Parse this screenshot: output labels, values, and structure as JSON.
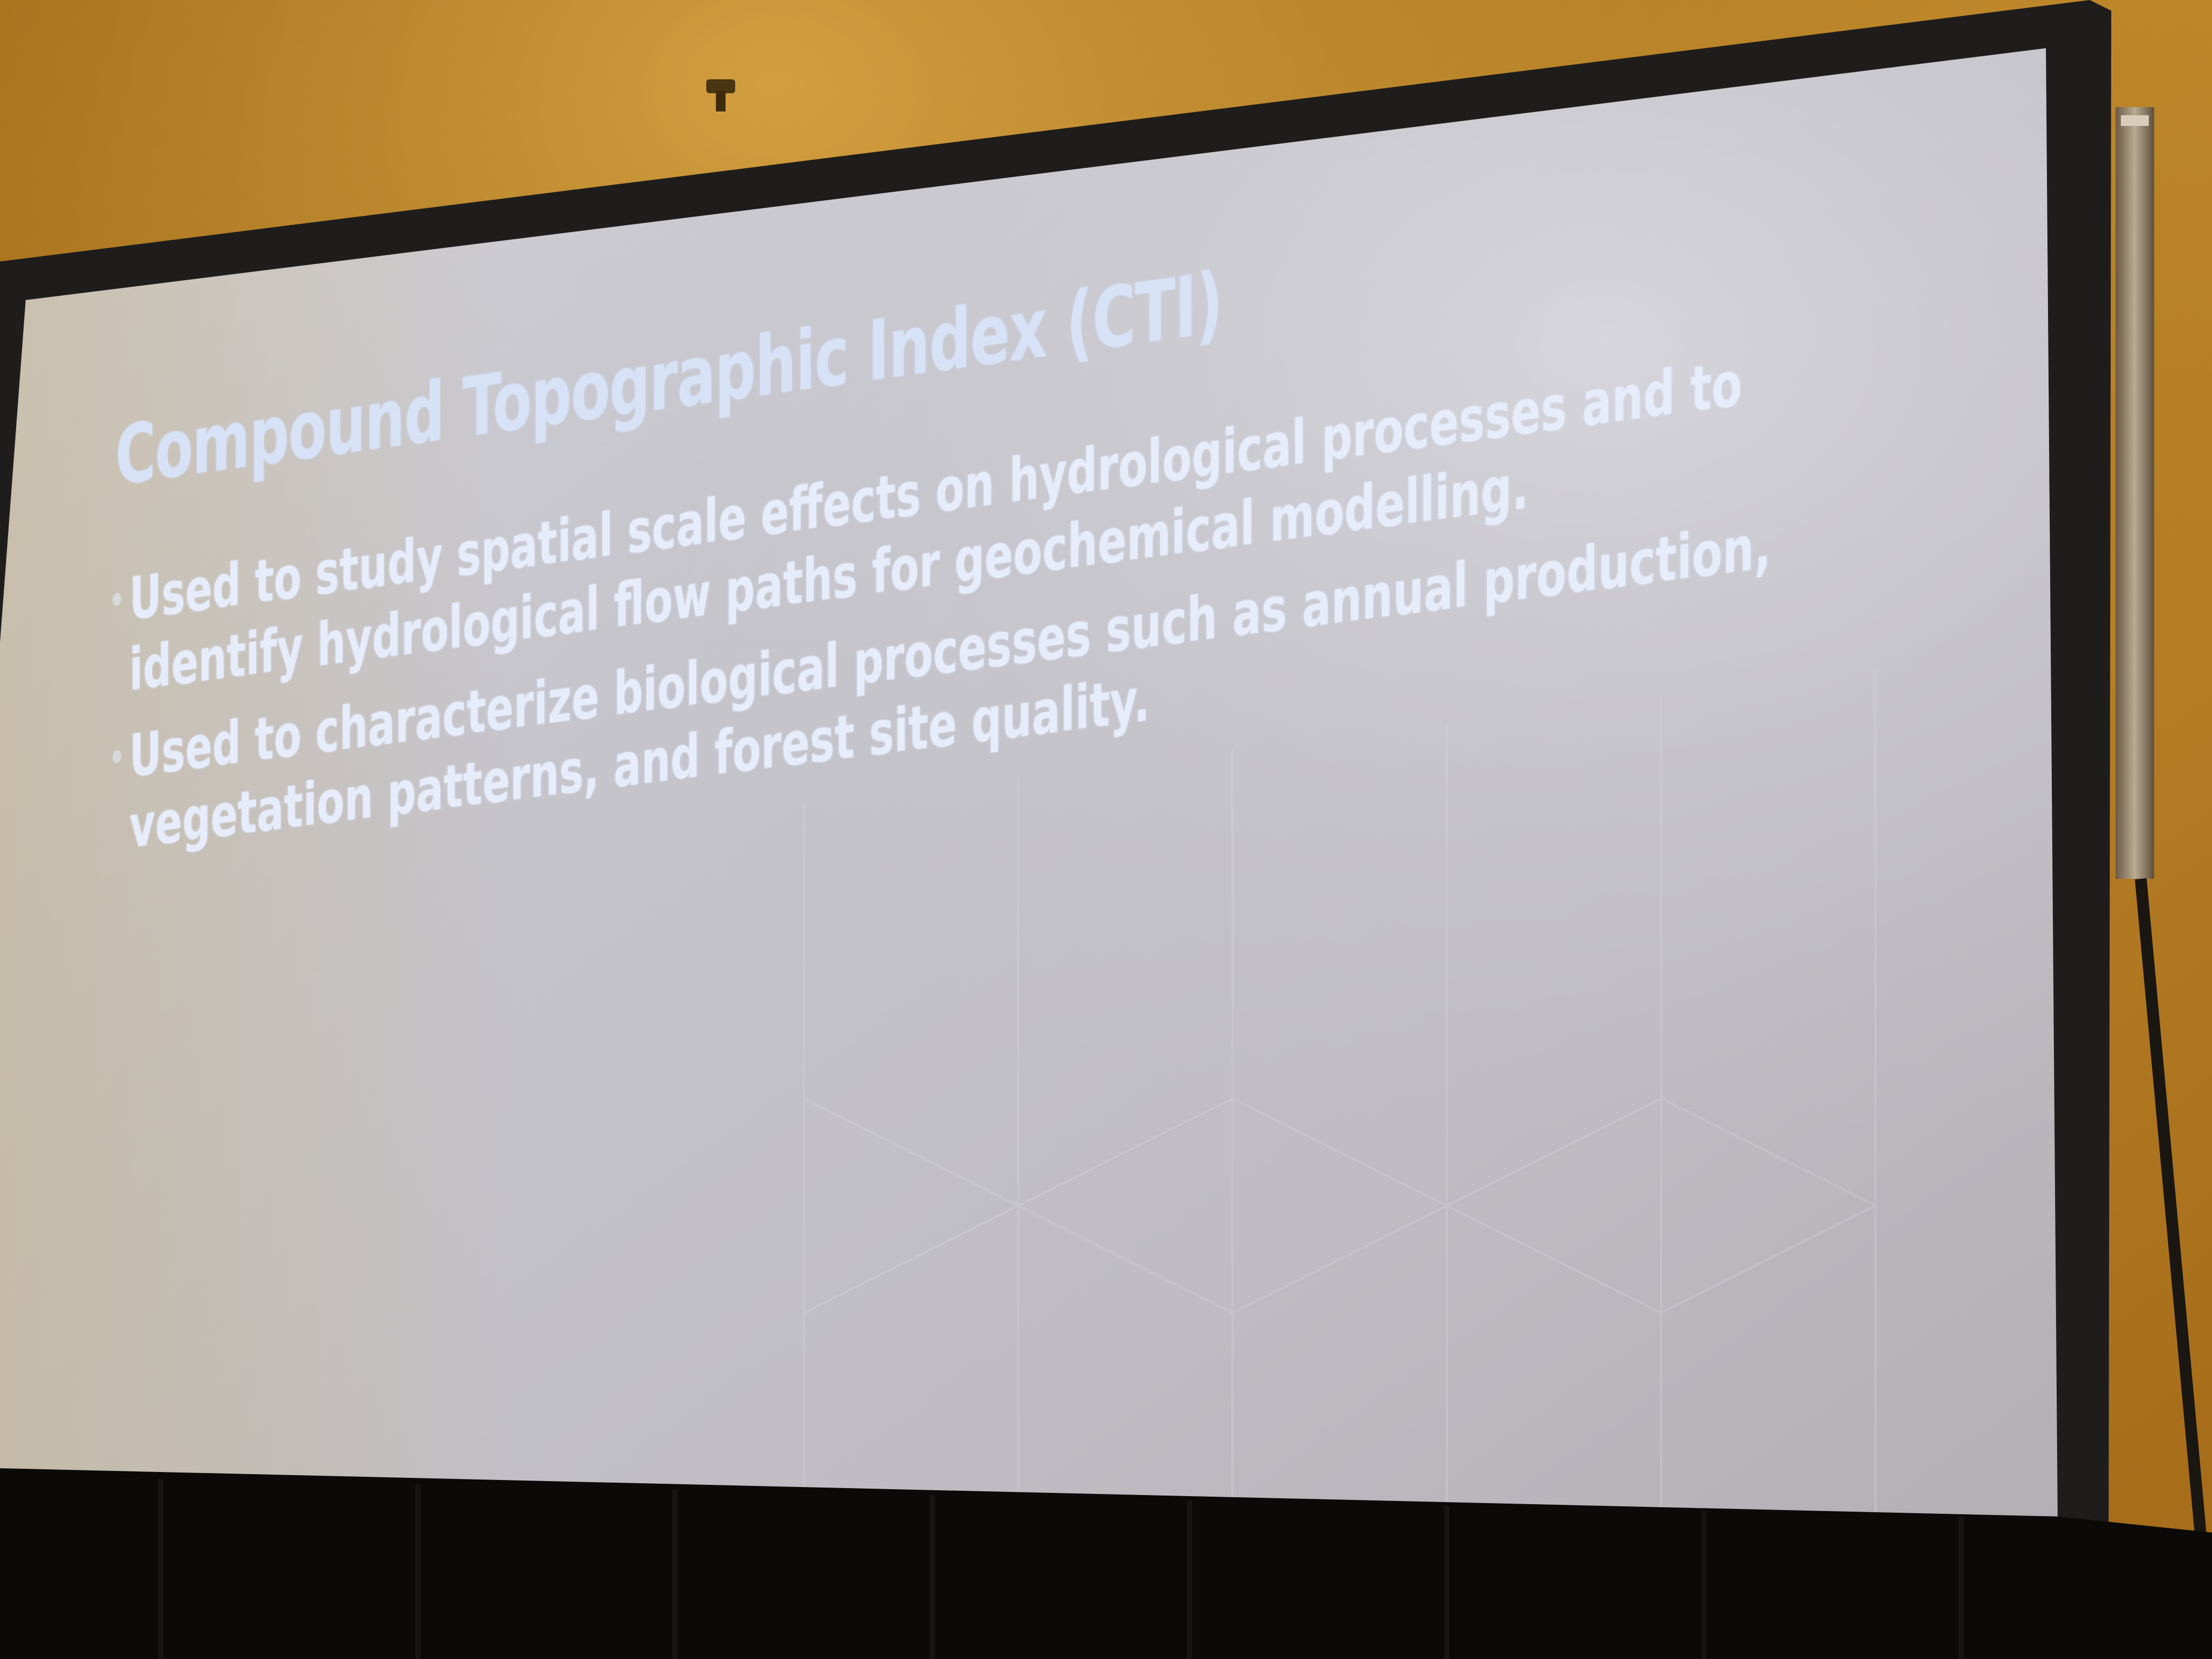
{
  "slide": {
    "title": "Compound Topographic Index (CTI)",
    "bullets": [
      {
        "text": "Used to study spatial scale effects on hydrological processes and to identify hydrological flow paths for geochemical modelling."
      },
      {
        "text": "Used to characterize biological processes such as annual production, vegetation patterns, and forest site quality."
      }
    ]
  },
  "colors": {
    "wall_ceiling": "#b07a1c",
    "screen_surface": "#c9c8cf",
    "screen_frame": "#1f1d1c",
    "stage_curtain": "#0b0a09",
    "slide_text": "#e6ecfa"
  }
}
